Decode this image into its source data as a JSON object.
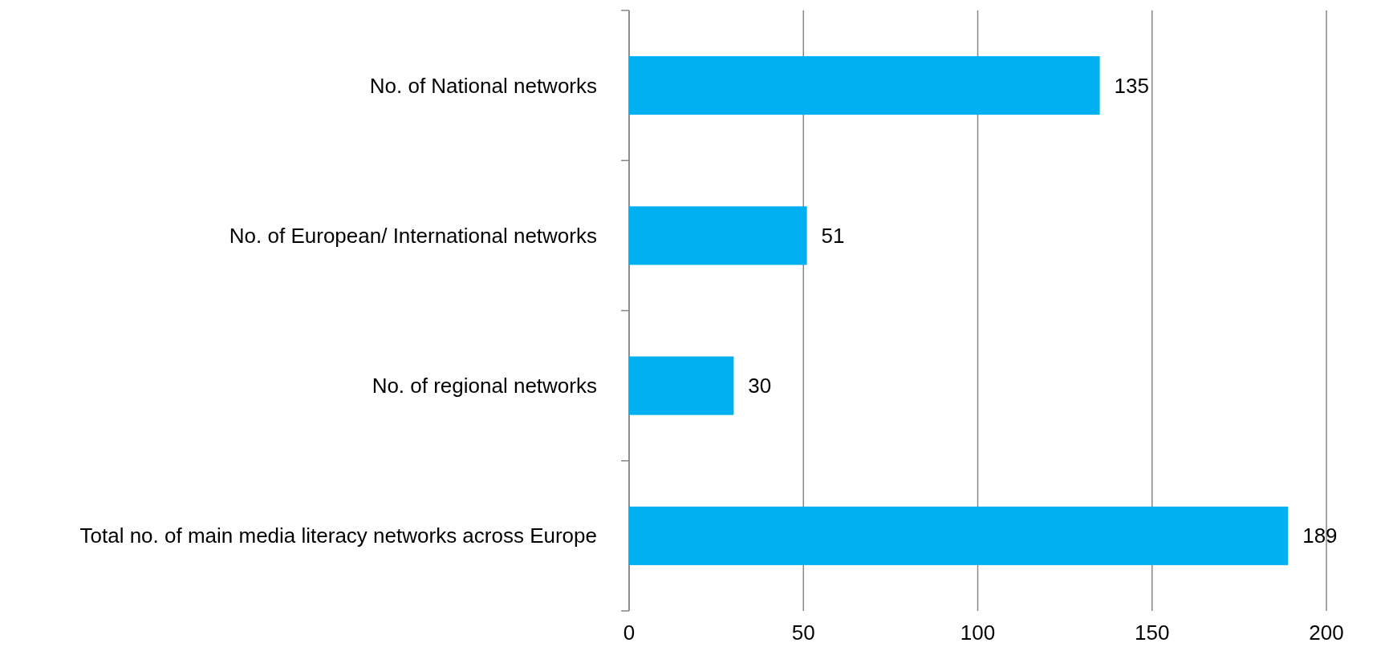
{
  "chart_data": {
    "type": "bar",
    "orientation": "horizontal",
    "categories": [
      "No. of National networks",
      "No. of European/ International networks",
      "No. of regional networks",
      "Total no. of main media literacy networks across Europe"
    ],
    "values": [
      135,
      51,
      30,
      189
    ],
    "color": "#00b0f0",
    "xlim": [
      0,
      200
    ],
    "xticks": [
      0,
      50,
      100,
      150,
      200
    ],
    "grid": "x",
    "data_labels": true
  }
}
